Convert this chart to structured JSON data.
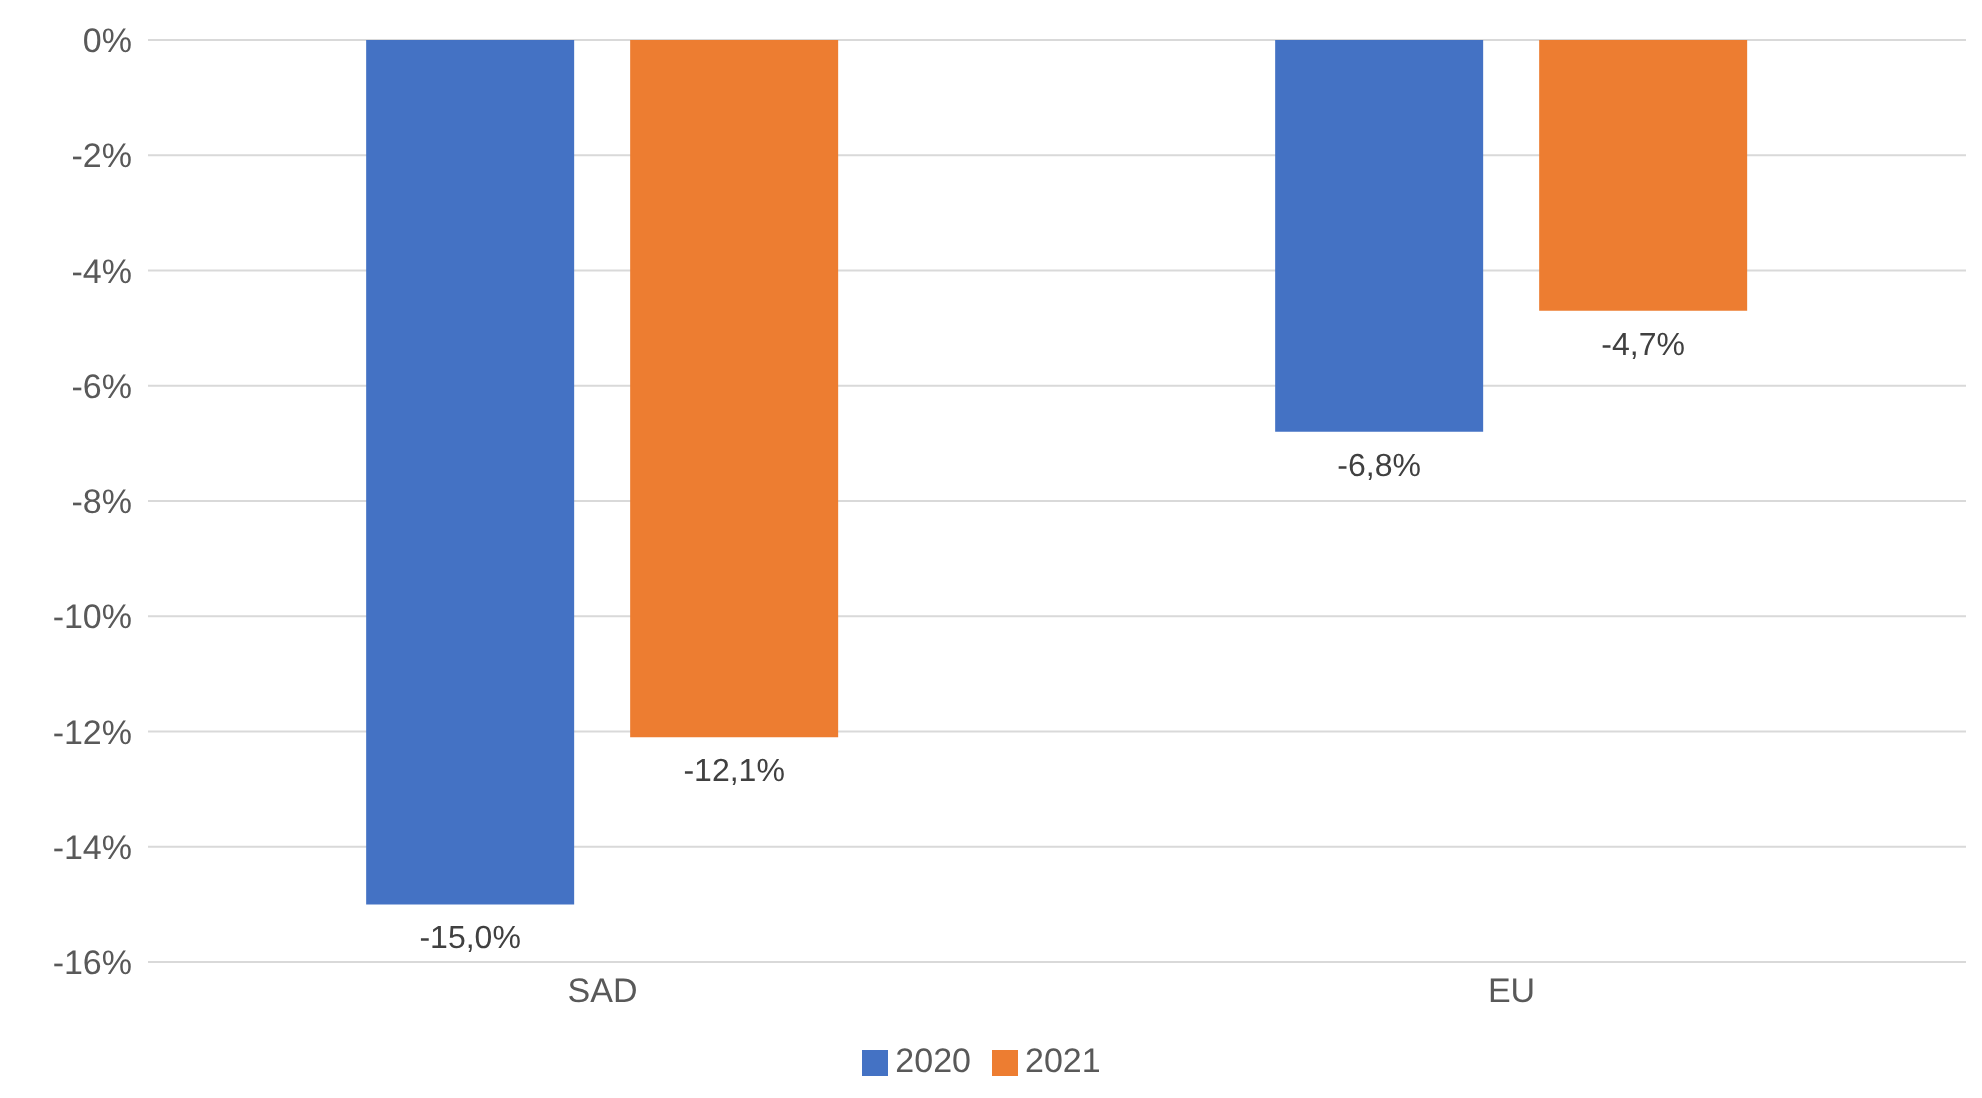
{
  "chart_data": {
    "type": "bar",
    "categories": [
      "SAD",
      "EU"
    ],
    "series": [
      {
        "name": "2020",
        "color": "#4472c4",
        "values": [
          -15.0,
          -6.8
        ],
        "value_labels": [
          "-15,0%",
          "-6,8%"
        ]
      },
      {
        "name": "2021",
        "color": "#ed7d31",
        "values": [
          -12.1,
          -4.7
        ],
        "value_labels": [
          "-12,1%",
          "-4,7%"
        ]
      }
    ],
    "ylim": [
      -16,
      0
    ],
    "yticks": [
      {
        "value": 0,
        "label": "0%"
      },
      {
        "value": -2,
        "label": "-2%"
      },
      {
        "value": -4,
        "label": "-4%"
      },
      {
        "value": -6,
        "label": "-6%"
      },
      {
        "value": -8,
        "label": "-8%"
      },
      {
        "value": -10,
        "label": "-10%"
      },
      {
        "value": -12,
        "label": "-12%"
      },
      {
        "value": -14,
        "label": "-14%"
      },
      {
        "value": -16,
        "label": "-16%"
      }
    ],
    "grid": "y",
    "legend": "bottom"
  }
}
